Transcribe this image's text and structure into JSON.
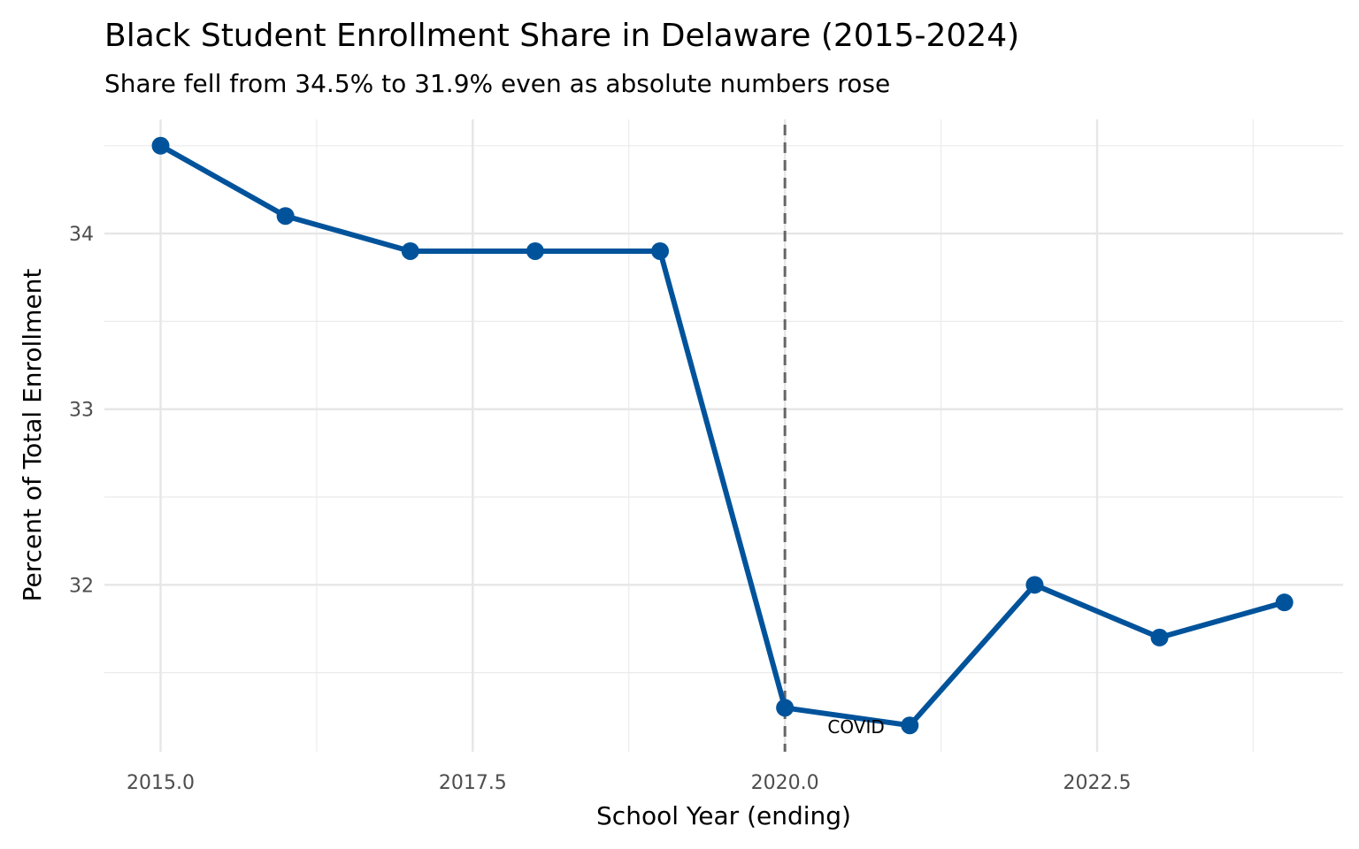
{
  "chart_data": {
    "type": "line",
    "title": "Black Student Enrollment Share in Delaware (2015-2024)",
    "subtitle": "Share fell from 34.5% to 31.9% even as absolute numbers rose",
    "xlabel": "School Year (ending)",
    "ylabel": "Percent of Total Enrollment",
    "x": [
      2015,
      2016,
      2017,
      2018,
      2019,
      2020,
      2021,
      2022,
      2023,
      2024
    ],
    "series": [
      {
        "values": [
          34.5,
          34.1,
          33.9,
          33.9,
          33.9,
          31.3,
          31.2,
          32.0,
          31.7,
          31.9
        ],
        "color": "#00539b"
      }
    ],
    "xlim": [
      2014.55,
      2024.47
    ],
    "ylim": [
      31.05,
      34.65
    ],
    "x_ticks": [
      2015,
      2017.5,
      2020,
      2022.5
    ],
    "x_tick_labels": [
      "2015.0",
      "2017.5",
      "2020.0",
      "2022.5"
    ],
    "x_minor": [
      2016.25,
      2018.75,
      2021.25,
      2023.75
    ],
    "y_ticks": [
      32,
      33,
      34
    ],
    "y_tick_labels": [
      "32",
      "33",
      "34"
    ],
    "y_minor": [
      31.5,
      32.5,
      33.5,
      34.5
    ],
    "grid": true,
    "legend": "none",
    "annotations": [
      {
        "type": "vline",
        "x": 2020,
        "style": "dashed",
        "color": "#666666"
      },
      {
        "type": "text",
        "text": "COVID",
        "x": 2020.57,
        "y": 31.19
      }
    ]
  }
}
